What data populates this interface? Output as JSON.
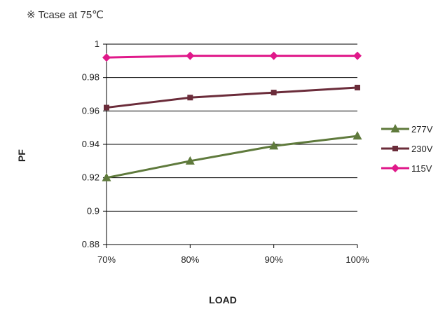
{
  "note": "※ Tcase at 75℃",
  "chart_data": {
    "type": "line",
    "x": [
      "70%",
      "80%",
      "90%",
      "100%"
    ],
    "xlabel": "LOAD",
    "ylabel": "PF",
    "ylim": [
      0.88,
      1
    ],
    "yticks": [
      "0.88",
      "0.9",
      "0.92",
      "0.94",
      "0.96",
      "0.98",
      "1"
    ],
    "ytick_values": [
      0.88,
      0.9,
      0.92,
      0.94,
      0.96,
      0.98,
      1.0
    ],
    "grid": "horizontal",
    "legend_position": "right",
    "series": [
      {
        "name": "277V",
        "values": [
          0.92,
          0.93,
          0.939,
          0.945
        ],
        "color": "#5f7a3c",
        "marker": "triangle"
      },
      {
        "name": "230V",
        "values": [
          0.962,
          0.968,
          0.971,
          0.974
        ],
        "color": "#6b2c3a",
        "marker": "square"
      },
      {
        "name": "115V",
        "values": [
          0.992,
          0.993,
          0.993,
          0.993
        ],
        "color": "#e0198a",
        "marker": "diamond"
      }
    ]
  }
}
